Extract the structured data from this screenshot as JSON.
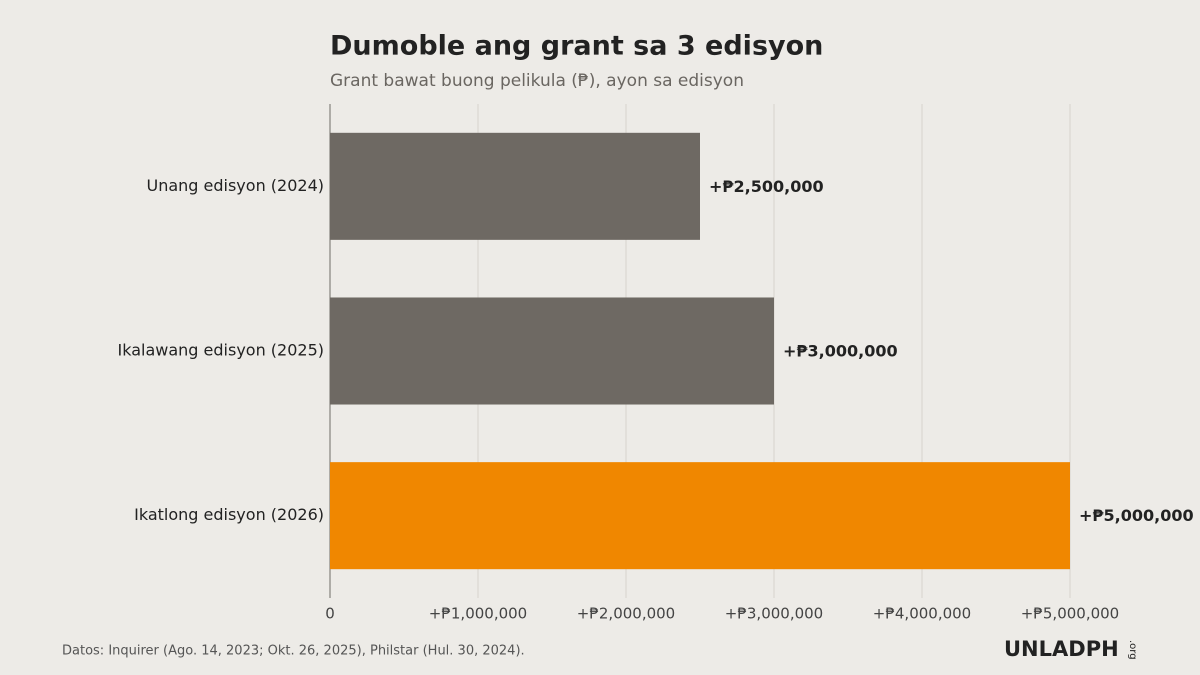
{
  "chart_data": {
    "type": "bar",
    "orientation": "horizontal",
    "title": "Dumoble ang grant sa 3 edisyon",
    "subtitle": "Grant bawat buong pelikula (₱), ayon sa edisyon",
    "categories": [
      "Unang edisyon (2024)",
      "Ikalawang edisyon (2025)",
      "Ikatlong edisyon (2026)"
    ],
    "values": [
      2500000,
      3000000,
      5000000
    ],
    "value_labels": [
      "+₱2,500,000",
      "+₱3,000,000",
      "+₱5,000,000"
    ],
    "colors": [
      "#6e6963",
      "#6e6963",
      "#f08700"
    ],
    "xlim": [
      0,
      5000000
    ],
    "xticks": [
      0,
      {
        "value": 1000000,
        "label": "+₱1,000,000"
      },
      {
        "value": 2000000,
        "label": "+₱2,000,000"
      },
      {
        "value": 3000000,
        "label": "+₱3,000,000"
      },
      {
        "value": 4000000,
        "label": "+₱4,000,000"
      },
      {
        "value": 5000000,
        "label": "+₱5,000,000"
      }
    ],
    "grid": true
  },
  "footer": {
    "source": "Datos: Inquirer (Ago. 14, 2023; Okt. 26, 2025), Philstar (Hul. 30, 2024).",
    "logo": "UNLADPH",
    "logo_suffix": ".org"
  }
}
